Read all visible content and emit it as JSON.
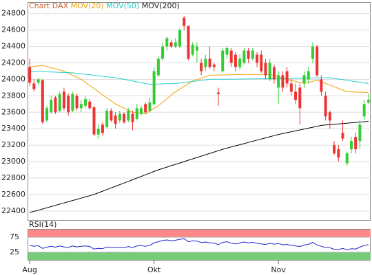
{
  "chart_data": [
    {
      "type": "candlestick",
      "title": "Chart DAX",
      "categories": [
        "Aug",
        null,
        null,
        null,
        null,
        null,
        null,
        null,
        null,
        null,
        null,
        null,
        null,
        null,
        null,
        null,
        null,
        null,
        null,
        null,
        null,
        null,
        null,
        null,
        null,
        null,
        null,
        null,
        null,
        "Okt",
        null,
        null,
        null,
        null,
        null,
        null,
        null,
        null,
        null,
        null,
        null,
        null,
        null,
        null,
        null,
        null,
        null,
        null,
        null,
        null,
        null,
        null,
        null,
        null,
        null,
        null,
        null,
        null,
        "Nov",
        null,
        null,
        null,
        null,
        null,
        null,
        null,
        null,
        null,
        null,
        null,
        null,
        null,
        null,
        null,
        null,
        null,
        null,
        null,
        null,
        null
      ],
      "open": [
        24150,
        23950,
        23960,
        23990,
        23500,
        23600,
        23780,
        23620,
        23850,
        23800,
        23620,
        23800,
        23650,
        23680,
        23730,
        23660,
        23330,
        23450,
        23420,
        23620,
        23560,
        23500,
        23580,
        23500,
        23580,
        23520,
        23580,
        23700,
        23620,
        23700,
        24050,
        24250,
        24400,
        24450,
        24400,
        24400,
        24750,
        24650,
        24300,
        24350,
        24200,
        24150,
        24250,
        24180,
        23840,
        24100,
        24300,
        24350,
        24300,
        24150,
        24200,
        24350,
        24250,
        24300,
        24300,
        24200,
        24000,
        24150,
        23900,
        24050,
        24100,
        23950,
        23850,
        23900,
        23950,
        24000,
        24250,
        24400,
        24000,
        23800,
        23600,
        23200,
        23150,
        23350,
        22980,
        23150,
        23300,
        23250,
        23550,
        23720
      ],
      "high": [
        24250,
        24000,
        24020,
        24000,
        23680,
        23800,
        23800,
        23850,
        23900,
        23830,
        23850,
        23830,
        23750,
        23800,
        23760,
        23680,
        23460,
        23480,
        23650,
        23650,
        23600,
        23620,
        23600,
        23650,
        23620,
        23700,
        23680,
        23720,
        23780,
        24150,
        24280,
        24450,
        24520,
        24480,
        24500,
        24620,
        24770,
        24650,
        24450,
        24450,
        24250,
        24300,
        24400,
        24200,
        23900,
        24380,
        24400,
        24380,
        24330,
        24300,
        24380,
        24380,
        24380,
        24330,
        24350,
        24250,
        24250,
        24180,
        24100,
        24100,
        24150,
        24000,
        23950,
        23950,
        24100,
        24150,
        24450,
        24420,
        24050,
        23850,
        23620,
        23250,
        23200,
        23500,
        23120,
        23300,
        23350,
        23500,
        23750,
        23820
      ],
      "low": [
        23920,
        23850,
        23930,
        23460,
        23480,
        23580,
        23580,
        23600,
        23620,
        23560,
        23600,
        23620,
        23600,
        23650,
        23630,
        23310,
        23280,
        23320,
        23400,
        23480,
        23400,
        23470,
        23460,
        23480,
        23380,
        23500,
        23560,
        23580,
        23600,
        23680,
        24030,
        24230,
        24350,
        24380,
        24380,
        24380,
        24600,
        24230,
        24280,
        24200,
        24050,
        24100,
        24130,
        24100,
        23680,
        24080,
        24250,
        24150,
        24100,
        24120,
        24180,
        24200,
        24230,
        24150,
        24080,
        24000,
        23980,
        23950,
        23700,
        23850,
        23900,
        23800,
        23700,
        23450,
        23900,
        23950,
        24200,
        24030,
        23800,
        23500,
        23400,
        23080,
        23000,
        23250,
        22950,
        23100,
        23100,
        23150,
        23500,
        23700
      ],
      "close": [
        23960,
        23880,
        24000,
        23480,
        23650,
        23750,
        23600,
        23820,
        23650,
        23600,
        23820,
        23650,
        23700,
        23760,
        23650,
        23330,
        23400,
        23350,
        23620,
        23500,
        23460,
        23580,
        23480,
        23620,
        23480,
        23650,
        23650,
        23600,
        23720,
        24100,
        24250,
        24400,
        24500,
        24400,
        24450,
        24600,
        24650,
        24250,
        24420,
        24400,
        24100,
        24250,
        24150,
        24150,
        23820,
        24350,
        24380,
        24200,
        24150,
        24250,
        24350,
        24250,
        24350,
        24200,
        24100,
        24050,
        24200,
        24000,
        24050,
        23900,
        23950,
        23850,
        23750,
        23650,
        24050,
        24100,
        24400,
        24050,
        23850,
        23550,
        23500,
        23100,
        23050,
        23280,
        23100,
        23250,
        23150,
        23450,
        23700,
        23750
      ],
      "up_color": "#33cc33",
      "down_color": "#ee3333",
      "title_color": "#cc6633",
      "series": [
        {
          "name": "MOV(20)",
          "color": "#f0a000",
          "values": [
            24150,
            24157,
            24163,
            24170,
            24156,
            24142,
            24128,
            24114,
            24100,
            24075,
            24050,
            24025,
            24000,
            23963,
            23925,
            23888,
            23850,
            23813,
            23775,
            23738,
            23700,
            23675,
            23650,
            23625,
            23600,
            23593,
            23587,
            23580,
            23613,
            23647,
            23680,
            23723,
            23765,
            23808,
            23850,
            23883,
            23915,
            23948,
            23980,
            23998,
            24015,
            24033,
            24050,
            24051,
            24053,
            24054,
            24055,
            24056,
            24058,
            24059,
            24060,
            24060,
            24060,
            24060,
            24060,
            24060,
            24060,
            24045,
            24030,
            24015,
            24000,
            23988,
            23975,
            23963,
            23950,
            23963,
            23977,
            23990,
            23970,
            23950,
            23930,
            23910,
            23890,
            23870,
            23850,
            23848,
            23846,
            23844,
            23842,
            23840
          ]
        },
        {
          "name": "MOV(50)",
          "color": "#22cccc",
          "values": [
            24100,
            24098,
            24096,
            24094,
            24092,
            24090,
            24088,
            24086,
            24084,
            24082,
            24080,
            24074,
            24068,
            24062,
            24056,
            24050,
            24044,
            24038,
            24032,
            24026,
            24020,
            24010,
            24000,
            23990,
            23980,
            23970,
            23960,
            23950,
            23940,
            23942,
            23943,
            23945,
            23947,
            23948,
            23950,
            23956,
            23963,
            23969,
            23975,
            23981,
            23988,
            23994,
            24000,
            24001,
            24001,
            24002,
            24002,
            24003,
            24003,
            24004,
            24004,
            24005,
            24006,
            24006,
            24007,
            24007,
            24008,
            24008,
            24009,
            24009,
            24010,
            24011,
            24012,
            24013,
            24014,
            24015,
            24016,
            24017,
            24018,
            24019,
            24020,
            24012,
            24004,
            23997,
            23989,
            23981,
            23973,
            23966,
            23958,
            23950
          ]
        },
        {
          "name": "MOV(200)",
          "color": "#000000",
          "values": [
            22380,
            22395,
            22409,
            22424,
            22439,
            22453,
            22468,
            22483,
            22497,
            22512,
            22527,
            22541,
            22556,
            22571,
            22585,
            22600,
            22620,
            22640,
            22660,
            22680,
            22700,
            22720,
            22740,
            22760,
            22780,
            22800,
            22820,
            22840,
            22860,
            22880,
            22900,
            22917,
            22933,
            22950,
            22967,
            22983,
            23000,
            23017,
            23033,
            23050,
            23067,
            23083,
            23100,
            23117,
            23133,
            23150,
            23164,
            23178,
            23192,
            23205,
            23219,
            23233,
            23247,
            23261,
            23275,
            23288,
            23302,
            23316,
            23330,
            23341,
            23352,
            23363,
            23374,
            23385,
            23396,
            23407,
            23418,
            23429,
            23440,
            23445,
            23449,
            23454,
            23458,
            23463,
            23467,
            23472,
            23476,
            23481,
            23485,
            23490
          ]
        }
      ],
      "ylim": [
        22290,
        24940
      ],
      "yticks": [
        22400,
        22600,
        22800,
        23000,
        23200,
        23400,
        23600,
        23800,
        24000,
        24200,
        24400,
        24600,
        24800
      ],
      "grid": true
    },
    {
      "type": "line",
      "title": "RSI(14)",
      "series": [
        {
          "name": "RSI(14)",
          "color": "#2222cc",
          "values": [
            48,
            45,
            47,
            38,
            42,
            45,
            42,
            46,
            43,
            41,
            46,
            43,
            45,
            46,
            44,
            36,
            38,
            37,
            43,
            41,
            40,
            42,
            40,
            44,
            41,
            46,
            47,
            45,
            48,
            56,
            60,
            64,
            66,
            63,
            65,
            68,
            70,
            60,
            63,
            62,
            57,
            59,
            56,
            56,
            50,
            58,
            60,
            55,
            53,
            56,
            59,
            56,
            58,
            55,
            53,
            51,
            55,
            52,
            54,
            50,
            51,
            48,
            46,
            44,
            49,
            51,
            58,
            49,
            45,
            41,
            40,
            35,
            34,
            38,
            33,
            37,
            36,
            42,
            48,
            50
          ]
        }
      ],
      "upper_band_color": "#ff8888",
      "lower_band_color": "#77cc77",
      "ylim": [
        0,
        100
      ],
      "yticks": [
        25,
        75
      ],
      "grid": true
    }
  ]
}
